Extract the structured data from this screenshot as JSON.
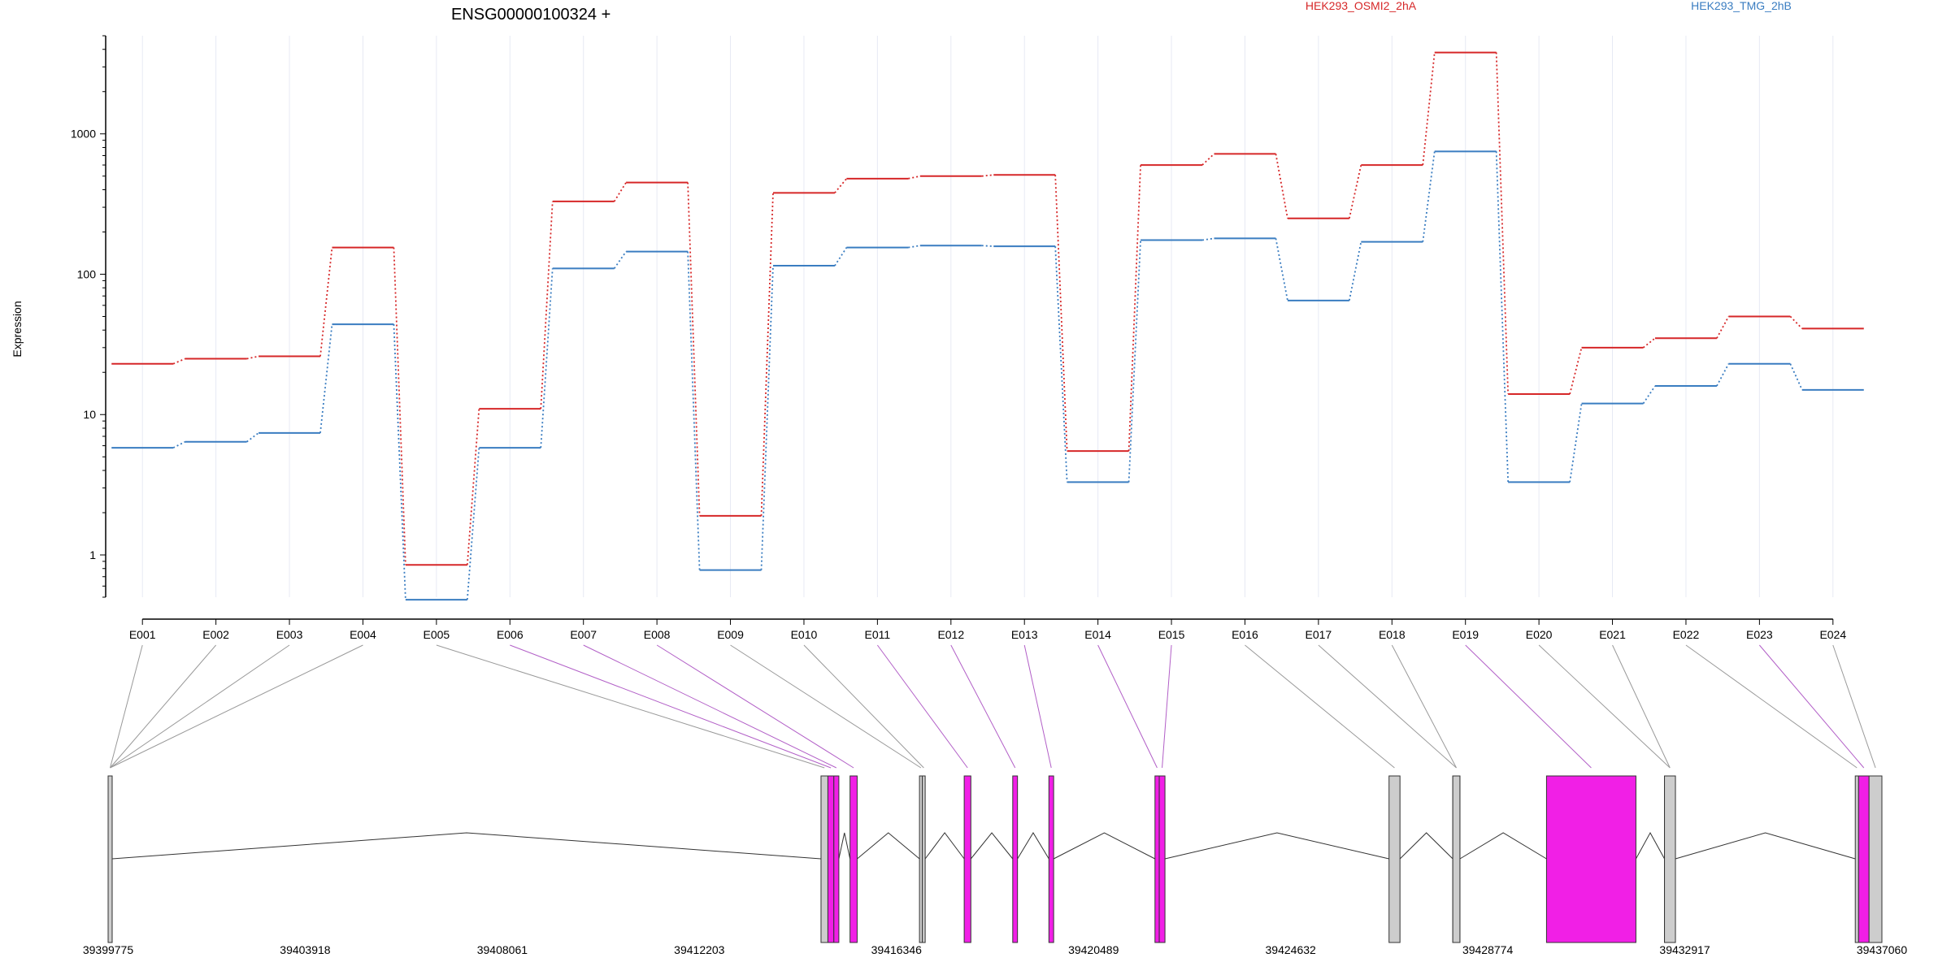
{
  "chart_data": {
    "type": "line",
    "title": "ENSG00000100324 +",
    "ylabel": "Expression",
    "xlabel": "",
    "y_scale": "log",
    "ylim": [
      0.5,
      5000
    ],
    "y_ticks": [
      1,
      10,
      100,
      1000
    ],
    "y_tick_labels": [
      "1",
      "10",
      "100",
      "1000"
    ],
    "categories": [
      "E001",
      "E002",
      "E003",
      "E004",
      "E005",
      "E006",
      "E007",
      "E008",
      "E009",
      "E010",
      "E011",
      "E012",
      "E013",
      "E014",
      "E015",
      "E016",
      "E017",
      "E018",
      "E019",
      "E020",
      "E021",
      "E022",
      "E023",
      "E024"
    ],
    "grid": "vertical",
    "legend": "top",
    "series": [
      {
        "name": "HEK293_OSMI2_2hA",
        "color": "#d62728",
        "values": [
          23,
          25,
          26,
          155,
          0.85,
          11,
          330,
          450,
          1.9,
          380,
          480,
          500,
          510,
          5.5,
          600,
          720,
          250,
          600,
          3800,
          14,
          30,
          35,
          50,
          41
        ]
      },
      {
        "name": "HEK293_TMG_2hB",
        "color": "#3a7dc1",
        "values": [
          5.8,
          6.4,
          7.4,
          44,
          0.48,
          5.8,
          110,
          145,
          0.78,
          115,
          155,
          160,
          158,
          3.3,
          175,
          180,
          65,
          170,
          750,
          3.3,
          12,
          16,
          23,
          15
        ]
      }
    ],
    "gene_model": {
      "genomic_range": [
        39399775,
        39437060
      ],
      "coordinate_labels": [
        "39399775",
        "39403918",
        "39408061",
        "39412203",
        "39416346",
        "39420489",
        "39424632",
        "39428774",
        "39432917",
        "39437060"
      ],
      "exons": [
        {
          "id": "E001",
          "start": 39399775,
          "end": 39399860,
          "highlight": false
        },
        {
          "id": "E002",
          "start": 39399775,
          "end": 39399860,
          "highlight": false
        },
        {
          "id": "E003",
          "start": 39399775,
          "end": 39399860,
          "highlight": false
        },
        {
          "id": "E004",
          "start": 39399775,
          "end": 39399860,
          "highlight": false
        },
        {
          "id": "E005",
          "start": 39414760,
          "end": 39414905,
          "highlight": false
        },
        {
          "id": "E006",
          "start": 39414905,
          "end": 39415030,
          "highlight": true
        },
        {
          "id": "E007",
          "start": 39415030,
          "end": 39415135,
          "highlight": true
        },
        {
          "id": "E008",
          "start": 39415370,
          "end": 39415520,
          "highlight": true
        },
        {
          "id": "E009",
          "start": 39416830,
          "end": 39416890,
          "highlight": false
        },
        {
          "id": "E010",
          "start": 39416890,
          "end": 39416950,
          "highlight": false
        },
        {
          "id": "E011",
          "start": 39417770,
          "end": 39417910,
          "highlight": true
        },
        {
          "id": "E012",
          "start": 39418790,
          "end": 39418890,
          "highlight": true
        },
        {
          "id": "E013",
          "start": 39419550,
          "end": 39419650,
          "highlight": true
        },
        {
          "id": "E014",
          "start": 39421780,
          "end": 39421870,
          "highlight": true
        },
        {
          "id": "E015",
          "start": 39421870,
          "end": 39421990,
          "highlight": true
        },
        {
          "id": "E016",
          "start": 39426700,
          "end": 39426930,
          "highlight": false
        },
        {
          "id": "E017",
          "start": 39428040,
          "end": 39428190,
          "highlight": false
        },
        {
          "id": "E018",
          "start": 39428040,
          "end": 39428190,
          "highlight": false
        },
        {
          "id": "E019",
          "start": 39430010,
          "end": 39431890,
          "highlight": true
        },
        {
          "id": "E020",
          "start": 39432490,
          "end": 39432720,
          "highlight": false
        },
        {
          "id": "E021",
          "start": 39432490,
          "end": 39432720,
          "highlight": false
        },
        {
          "id": "E022",
          "start": 39436500,
          "end": 39436570,
          "highlight": false
        },
        {
          "id": "E023",
          "start": 39436570,
          "end": 39436790,
          "highlight": true
        },
        {
          "id": "E024",
          "start": 39436790,
          "end": 39437060,
          "highlight": false
        }
      ]
    }
  }
}
